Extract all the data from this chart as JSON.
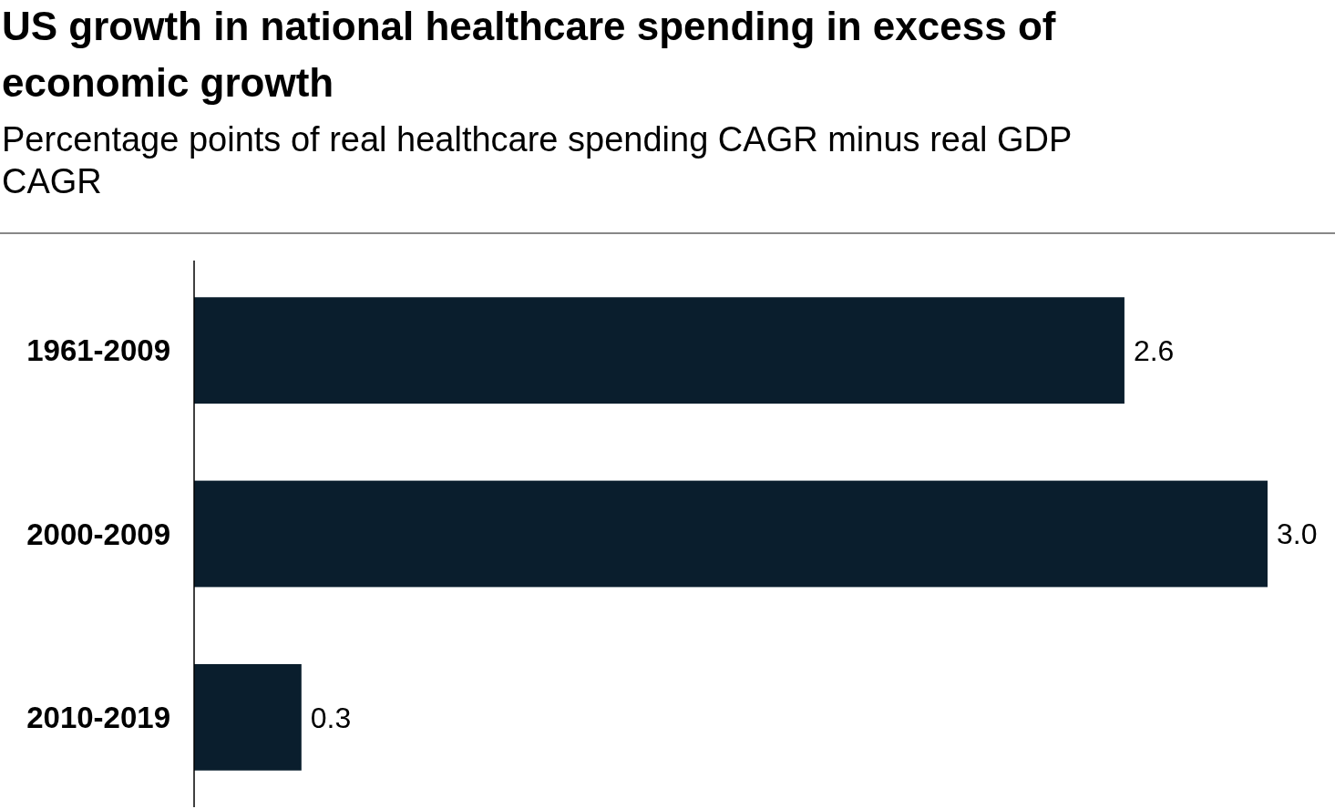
{
  "chart_data": {
    "type": "bar",
    "orientation": "horizontal",
    "title": "US growth in national healthcare spending in excess of economic growth",
    "subtitle": "Percentage points of real healthcare spending CAGR minus real GDP CAGR",
    "categories": [
      "1961-2009",
      "2000-2009",
      "2010-2019"
    ],
    "values": [
      2.6,
      3.0,
      0.3
    ],
    "value_labels": [
      "2.6",
      "3.0",
      "0.3"
    ],
    "color": "#0a1e2d"
  }
}
